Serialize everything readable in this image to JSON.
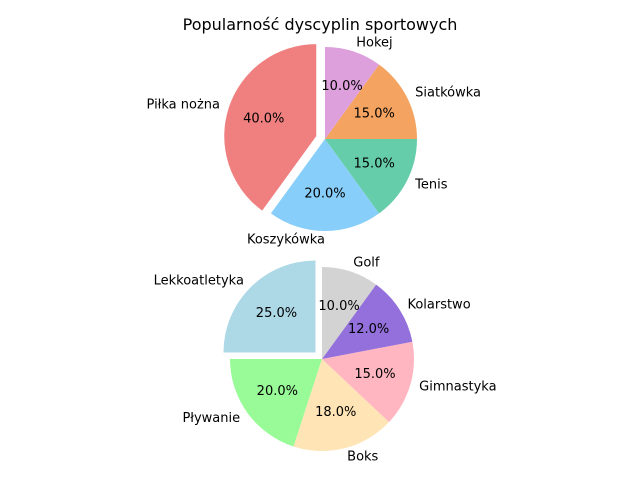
{
  "figure_title": "Popularność dyscyplin sportowych",
  "chart_data": [
    {
      "type": "pie",
      "labels": [
        "Piłka nożna",
        "Koszykówka",
        "Tenis",
        "Siatkówka",
        "Hokej"
      ],
      "values": [
        40.0,
        20.0,
        15.0,
        15.0,
        10.0
      ],
      "percent_labels": [
        "40.0%",
        "20.0%",
        "15.0%",
        "15.0%",
        "10.0%"
      ],
      "colors": [
        "#f08080",
        "#87cefa",
        "#66cdaa",
        "#f4a460",
        "#dda0dd"
      ],
      "explode": [
        0.1,
        0,
        0,
        0,
        0
      ],
      "start_angle": 90,
      "direction": "counterclockwise"
    },
    {
      "type": "pie",
      "labels": [
        "Lekkoatletyka",
        "Pływanie",
        "Boks",
        "Gimnastyka",
        "Kolarstwo",
        "Golf"
      ],
      "values": [
        25.0,
        20.0,
        18.0,
        15.0,
        12.0,
        10.0
      ],
      "percent_labels": [
        "25.0%",
        "20.0%",
        "18.0%",
        "15.0%",
        "12.0%",
        "10.0%"
      ],
      "colors": [
        "#add8e6",
        "#98fb98",
        "#ffe4b5",
        "#ffb6c1",
        "#9370db",
        "#d3d3d3"
      ],
      "explode": [
        0.1,
        0,
        0,
        0,
        0,
        0
      ],
      "start_angle": 90,
      "direction": "counterclockwise"
    }
  ]
}
